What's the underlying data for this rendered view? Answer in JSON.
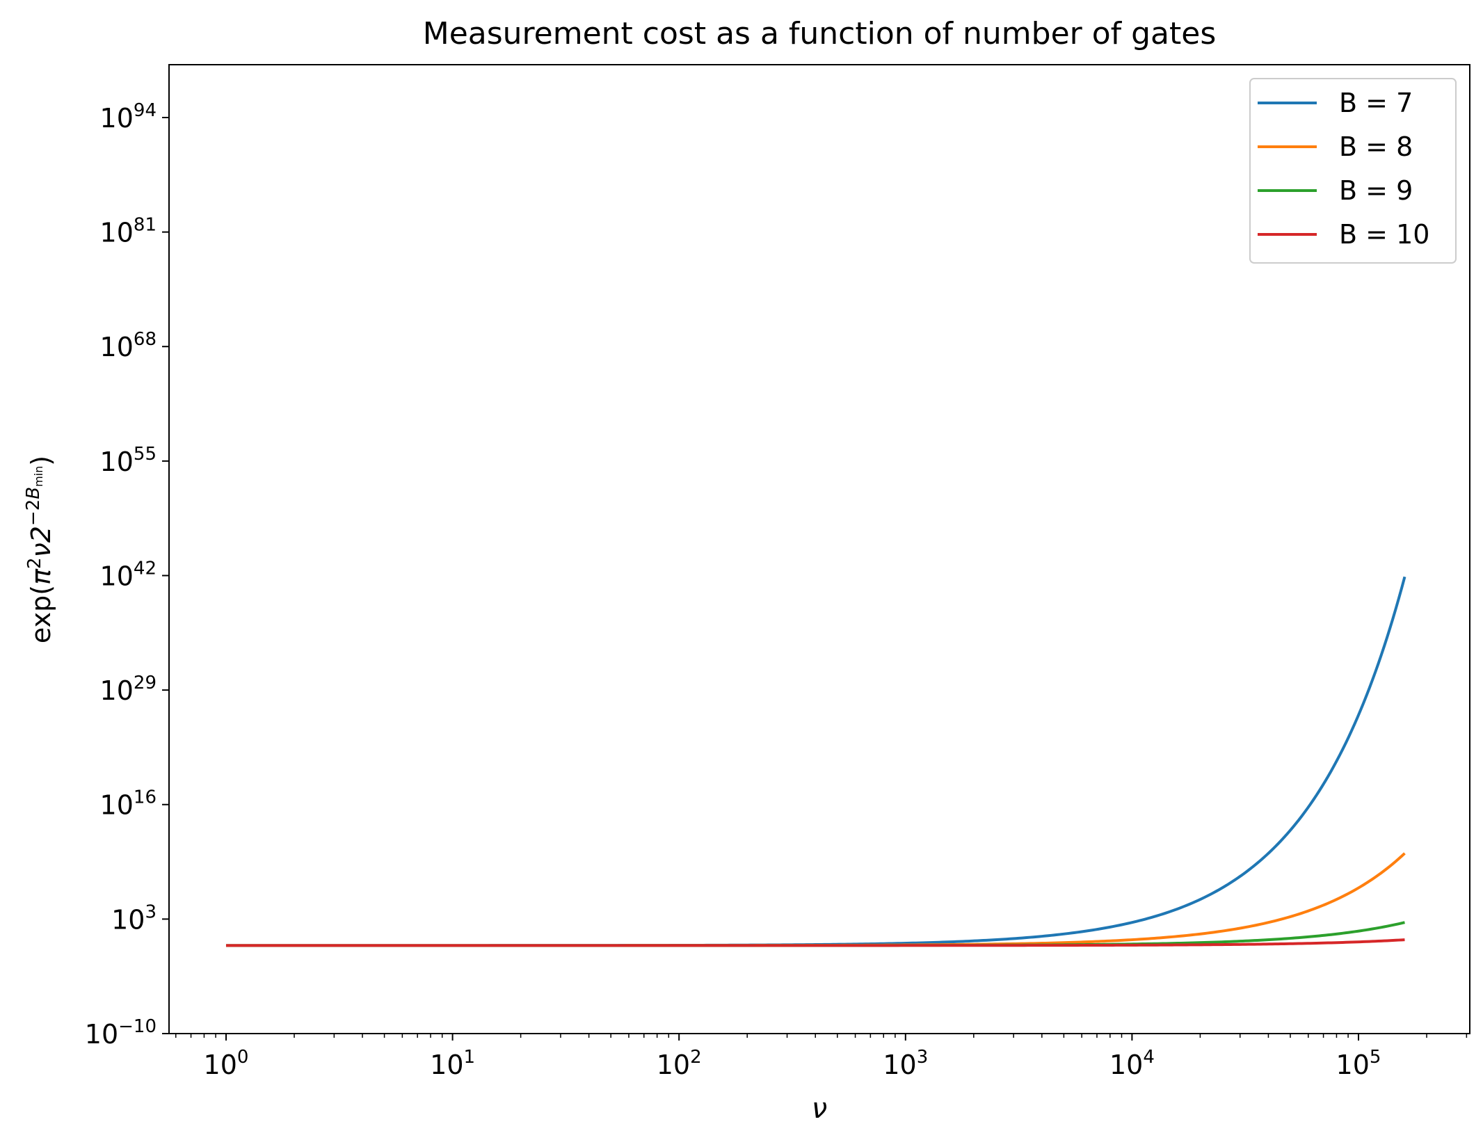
{
  "chart_data": {
    "type": "line",
    "title": "Measurement cost as a function of number of gates",
    "xlabel": "ν",
    "ylabel": {
      "prefix": "exp(",
      "pi": "π",
      "pi_exp": "2",
      "mid": "ν2",
      "minus2": "−2",
      "B": "B",
      "min": "min",
      "suffix": ")"
    },
    "x_scale": "log",
    "y_scale": "log",
    "xlim": [
      0.56,
      310000
    ],
    "ylim_log10": [
      -10,
      100
    ],
    "x_ticks": [
      {
        "value": 1,
        "base": "10",
        "exp": "0"
      },
      {
        "value": 10,
        "base": "10",
        "exp": "1"
      },
      {
        "value": 100,
        "base": "10",
        "exp": "2"
      },
      {
        "value": 1000,
        "base": "10",
        "exp": "3"
      },
      {
        "value": 10000,
        "base": "10",
        "exp": "4"
      },
      {
        "value": 100000,
        "base": "10",
        "exp": "5"
      }
    ],
    "y_ticks": [
      {
        "log10": -10,
        "base": "10",
        "exp": "−10"
      },
      {
        "log10": 3,
        "base": "10",
        "exp": "3"
      },
      {
        "log10": 16,
        "base": "10",
        "exp": "16"
      },
      {
        "log10": 29,
        "base": "10",
        "exp": "29"
      },
      {
        "log10": 42,
        "base": "10",
        "exp": "42"
      },
      {
        "log10": 55,
        "base": "10",
        "exp": "55"
      },
      {
        "log10": 68,
        "base": "10",
        "exp": "68"
      },
      {
        "log10": 81,
        "base": "10",
        "exp": "81"
      },
      {
        "log10": 94,
        "base": "10",
        "exp": "94"
      }
    ],
    "grid": false,
    "legend_position": "top-right",
    "x_range_data": [
      1,
      160000
    ],
    "series": [
      {
        "name": "B = 7",
        "B": 7,
        "color": "#1f77b4"
      },
      {
        "name": "B = 8",
        "B": 8,
        "color": "#ff7f0e"
      },
      {
        "name": "B = 9",
        "B": 9,
        "color": "#2ca02c"
      },
      {
        "name": "B = 10",
        "B": 10,
        "color": "#d62728"
      }
    ]
  }
}
